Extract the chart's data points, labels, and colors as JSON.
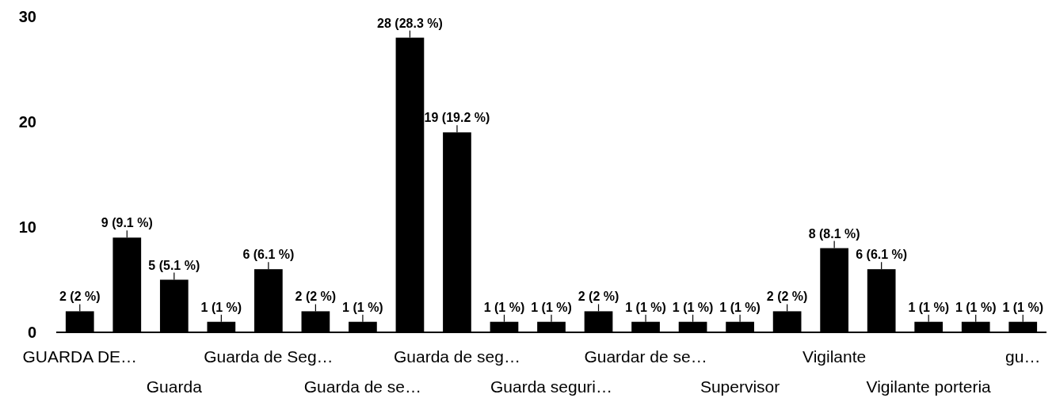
{
  "chart_data": {
    "type": "bar",
    "categories": [
      "GUARDA DE…",
      null,
      "Guarda",
      null,
      "Guarda de Seg…",
      null,
      "Guarda de se…",
      null,
      "Guarda de seg…",
      null,
      "Guarda seguri…",
      null,
      "Guardar de se…",
      null,
      "Supervisor",
      null,
      "Vigilante",
      null,
      "Vigilante porteria",
      null,
      "gu…"
    ],
    "values": [
      2,
      9,
      5,
      1,
      6,
      2,
      1,
      28,
      19,
      1,
      1,
      2,
      1,
      1,
      1,
      2,
      8,
      6,
      1,
      1,
      1
    ],
    "color": "#000000",
    "ylim": [
      0,
      30
    ],
    "yticks": [
      0,
      10,
      20,
      30
    ],
    "value_labels": [
      "2 (2 %)",
      "9 (9.1 %)",
      "5 (5.1 %)",
      "1 (1 %)",
      "6 (6.1 %)",
      "2 (2 %)",
      "1 (1 %)",
      "28 (28.3 %)",
      "19 (19.2 %)",
      "1 (1 %)",
      "1 (1 %)",
      "2 (2 %)",
      "1 (1 %)",
      "1 (1 %)",
      "1 (1 %)",
      "2 (2 %)",
      "8 (8.1 %)",
      "6 (6.1 %)",
      "1 (1 %)",
      "1 (1 %)",
      "1 (1 %)"
    ]
  }
}
